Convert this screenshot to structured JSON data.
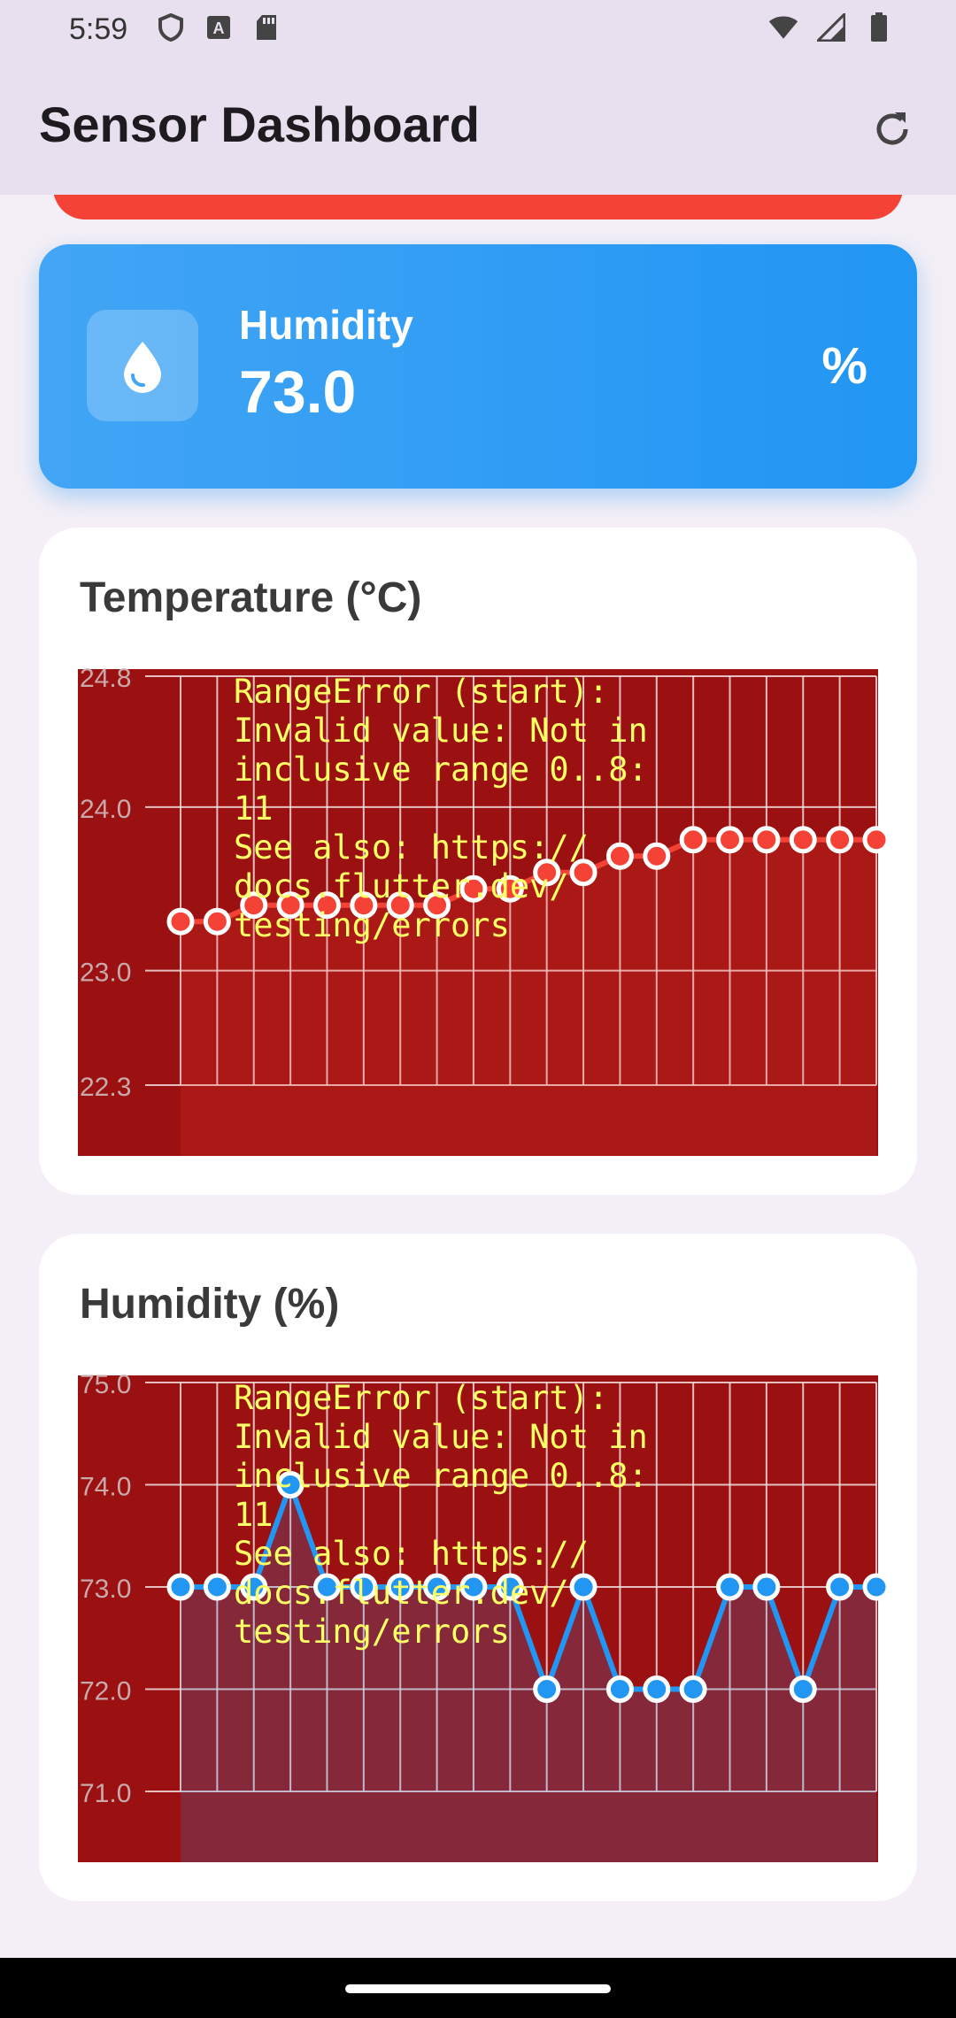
{
  "status_bar": {
    "time": "5:59",
    "left_icons": [
      "shield-icon",
      "keyboard-a-icon",
      "sd-card-icon"
    ],
    "right_icons": [
      "wifi-icon",
      "cell-signal-icon",
      "battery-icon"
    ]
  },
  "app_bar": {
    "title": "Sensor Dashboard",
    "refresh_icon": "refresh-icon"
  },
  "peek_card": {
    "color": "#f44336"
  },
  "humidity_card": {
    "label": "Humidity",
    "value": "73.0",
    "unit": "%",
    "icon": "water-drop-icon",
    "color": "#2196f3"
  },
  "error_message": [
    "RangeError (start):",
    "Invalid value: Not in",
    "inclusive range 0..8:",
    "11",
    "See also: https://",
    "docs.flutter.dev/",
    "testing/errors"
  ],
  "chart_data": [
    {
      "type": "line",
      "title": "Temperature (°C)",
      "y_ticks": [
        "24.8",
        "24.0",
        "23.0",
        "22.3"
      ],
      "ylim": [
        22.3,
        24.8
      ],
      "x": [
        0,
        1,
        2,
        3,
        4,
        5,
        6,
        7,
        8,
        9,
        10,
        11,
        12,
        13,
        14,
        15,
        16,
        17,
        18,
        19
      ],
      "series": [
        {
          "values": [
            23.3,
            23.3,
            23.4,
            23.4,
            23.4,
            23.4,
            23.4,
            23.4,
            23.5,
            23.5,
            23.6,
            23.6,
            23.7,
            23.7,
            23.8,
            23.8,
            23.8,
            23.8,
            23.8,
            23.8
          ]
        }
      ],
      "color": "#f44336",
      "grid": true
    },
    {
      "type": "line",
      "title": "Humidity (%)",
      "y_ticks": [
        "75.0",
        "74.0",
        "73.0",
        "72.0",
        "71.0"
      ],
      "ylim": [
        71.0,
        75.0
      ],
      "x": [
        0,
        1,
        2,
        3,
        4,
        5,
        6,
        7,
        8,
        9,
        10,
        11,
        12,
        13,
        14,
        15,
        16,
        17,
        18,
        19
      ],
      "series": [
        {
          "values": [
            73,
            73,
            73,
            74,
            73,
            73,
            73,
            73,
            73,
            73,
            72,
            73,
            72,
            72,
            72,
            73,
            73,
            72,
            73,
            73
          ]
        }
      ],
      "color": "#2196f3",
      "grid": true
    }
  ],
  "error_overlay": {
    "background": "#9b1111",
    "text_color": "#ffff66"
  }
}
